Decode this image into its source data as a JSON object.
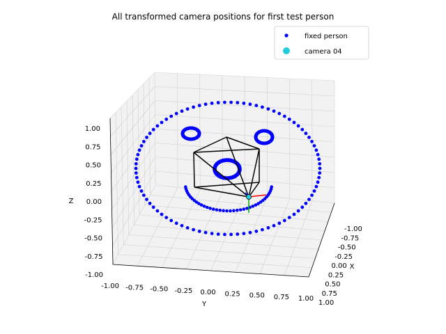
{
  "chart_data": {
    "type": "scatter",
    "title": "All transformed camera positions for first test person",
    "xlabel": "X",
    "ylabel": "Y",
    "zlabel": "Z",
    "xlim": [
      -1.0,
      1.0
    ],
    "ylim": [
      -1.0,
      1.0
    ],
    "zlim": [
      -1.0,
      1.0
    ],
    "x_ticks": [
      "-1.00",
      "-0.75",
      "-0.50",
      "-0.25",
      "0.00",
      "0.25",
      "0.50",
      "0.75",
      "1.00"
    ],
    "y_ticks": [
      "-1.00",
      "-0.75",
      "-0.50",
      "-0.25",
      "0.00",
      "0.25",
      "0.50",
      "0.75",
      "1.00"
    ],
    "z_ticks": [
      "1.00",
      "0.75",
      "0.50",
      "0.25",
      "0.00",
      "-0.25",
      "-0.50",
      "-0.75",
      "-1.00"
    ],
    "grid": true,
    "legend_position": "top-right",
    "series": [
      {
        "name": "fixed person",
        "color": "#0000ff",
        "marker": "dot"
      },
      {
        "name": "camera 04",
        "color": "#22ccdd",
        "marker": "dot"
      }
    ],
    "shapes": [
      "outer ring of points (radius ~1)",
      "left eye ring",
      "right eye ring",
      "center ring",
      "smile arc",
      "camera frustum (black)",
      "coordinate axes (red, green)"
    ]
  }
}
